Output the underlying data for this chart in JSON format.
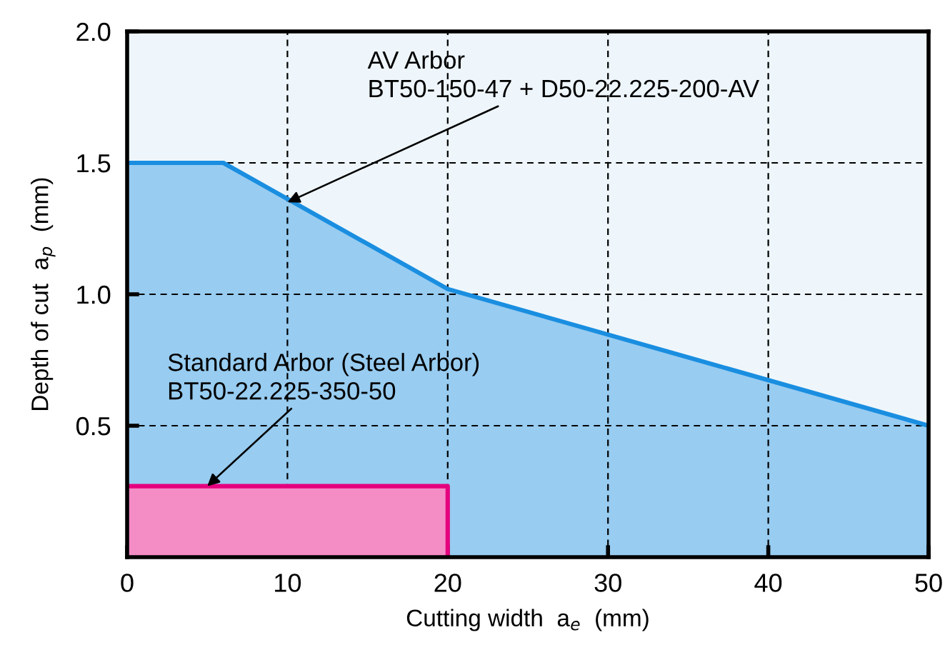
{
  "chart_data": {
    "type": "area",
    "xlabel": "Cutting width  a$_{e}$  (mm)",
    "ylabel": "Depth of cut  a$_{p}$  (mm)",
    "series": [
      {
        "color": "#1a8ee0",
        "x": [
          0,
          6,
          20,
          50
        ],
        "values": [
          1.5,
          1.5,
          1.02,
          0.5
        ]
      },
      {
        "color": "#e6007e",
        "x": [
          0,
          20,
          20
        ],
        "values": [
          0.27,
          0.27,
          0
        ]
      }
    ],
    "annotations": [
      {
        "text": "AV Arbor\nBT50-150-47 + D50-22.225-200-AV",
        "x": 10,
        "y": 1.35
      },
      {
        "text": "Standard Arbor (Steel Arbor)\nBT50-22.225-350-50",
        "x": 5,
        "y": 0.27
      }
    ],
    "xlim": [
      0,
      50
    ],
    "xticks": [
      0,
      10,
      20,
      30,
      40,
      50
    ],
    "ylim": [
      0,
      2.0
    ],
    "yticks": [
      {
        "value": 0.5,
        "label": "0.5"
      },
      {
        "value": 1.0,
        "label": "1.0"
      },
      {
        "value": 1.5,
        "label": "1.5"
      },
      {
        "value": 2.0,
        "label": "2.0"
      }
    ],
    "grid": true,
    "line_style": "solid",
    "legend": false
  }
}
